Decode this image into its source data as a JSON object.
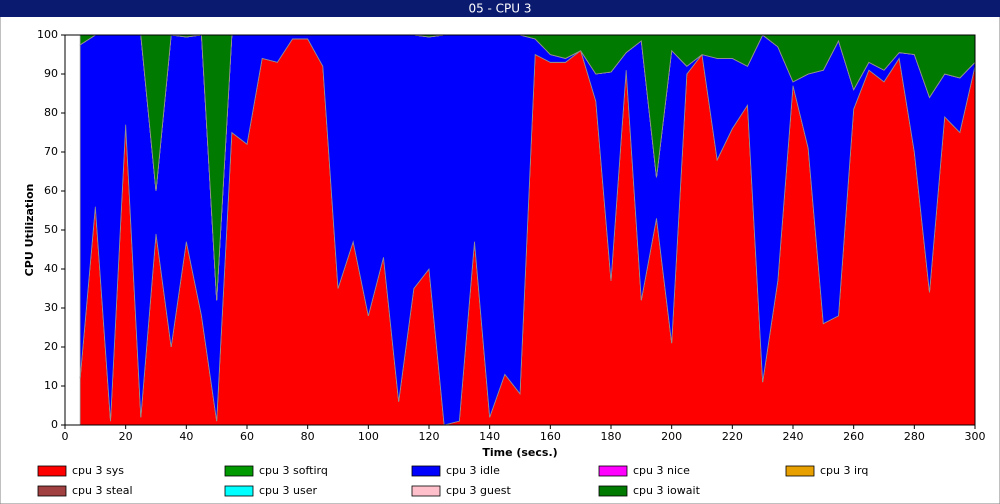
{
  "chart_data": {
    "type": "stacked_area",
    "title": "05 - CPU 3",
    "x_label": "Time (secs.)",
    "y_label": "CPU Utilization",
    "xlim": [
      0,
      300
    ],
    "xticks": [
      0,
      20,
      40,
      60,
      80,
      100,
      120,
      140,
      160,
      180,
      200,
      220,
      240,
      260,
      280,
      300
    ],
    "ylim": [
      0,
      100
    ],
    "yticks": [
      0,
      10,
      20,
      30,
      40,
      50,
      60,
      70,
      80,
      90,
      100
    ],
    "x": [
      5,
      10,
      15,
      20,
      25,
      30,
      35,
      40,
      45,
      50,
      55,
      60,
      65,
      70,
      75,
      80,
      85,
      90,
      95,
      100,
      105,
      110,
      115,
      120,
      125,
      130,
      135,
      140,
      145,
      150,
      155,
      160,
      165,
      170,
      175,
      180,
      185,
      190,
      195,
      200,
      205,
      210,
      215,
      220,
      225,
      230,
      235,
      240,
      245,
      250,
      255,
      260,
      265,
      270,
      275,
      280,
      285,
      290,
      295,
      300
    ],
    "series": [
      {
        "name": "cpu 3 sys",
        "color": "#ff0000",
        "values": [
          12,
          56,
          1,
          77,
          2,
          49,
          20,
          47,
          28,
          1,
          75,
          72,
          94,
          93,
          99,
          99,
          92,
          35,
          47,
          28,
          43,
          6,
          35,
          40,
          0,
          1,
          47,
          2,
          13,
          8,
          95,
          93,
          93,
          96,
          83,
          37,
          91,
          32,
          53,
          21,
          90,
          95,
          68,
          76,
          82,
          11,
          37,
          87,
          71,
          26,
          28,
          81,
          91,
          88,
          94,
          70,
          34,
          79,
          75,
          92
        ]
      },
      {
        "name": "cpu 3 softirq",
        "color": "#009900",
        "values": [
          0,
          0,
          0,
          0,
          0,
          0,
          0,
          0,
          0,
          0,
          0,
          0,
          0,
          0,
          0,
          0,
          0,
          0,
          0,
          0,
          0,
          0,
          0,
          0,
          0,
          0,
          0,
          0,
          0,
          0,
          0,
          0,
          0,
          0,
          0,
          0,
          0,
          0,
          0,
          0,
          0,
          0,
          0,
          0,
          0,
          0,
          0,
          0,
          0,
          0,
          0,
          0,
          0,
          0,
          0,
          0,
          0,
          0,
          0,
          0
        ]
      },
      {
        "name": "cpu 3 idle",
        "color": "#0000ff",
        "values": [
          85.5,
          44,
          99,
          23,
          98,
          11,
          80,
          52.5,
          72,
          31,
          25,
          28,
          6,
          7,
          1,
          1,
          8,
          65,
          53,
          72,
          57,
          94,
          65,
          59.5,
          100,
          99,
          53,
          98,
          87,
          92,
          4,
          2,
          1,
          0,
          7,
          53.5,
          4.5,
          66.5,
          10.5,
          75,
          2,
          0,
          26,
          18,
          10,
          89,
          60,
          1,
          19,
          65,
          70.5,
          5,
          2,
          3,
          1.5,
          25,
          50,
          11,
          14,
          1
        ]
      },
      {
        "name": "cpu 3 nice",
        "color": "#ff00ff",
        "values": [
          0,
          0,
          0,
          0,
          0,
          0,
          0,
          0,
          0,
          0,
          0,
          0,
          0,
          0,
          0,
          0,
          0,
          0,
          0,
          0,
          0,
          0,
          0,
          0,
          0,
          0,
          0,
          0,
          0,
          0,
          0,
          0,
          0,
          0,
          0,
          0,
          0,
          0,
          0,
          0,
          0,
          0,
          0,
          0,
          0,
          0,
          0,
          0,
          0,
          0,
          0,
          0,
          0,
          0,
          0,
          0,
          0,
          0,
          0,
          0
        ]
      },
      {
        "name": "cpu 3 irq",
        "color": "#e8a000",
        "values": [
          0,
          0,
          0,
          0,
          0,
          0,
          0,
          0,
          0,
          0,
          0,
          0,
          0,
          0,
          0,
          0,
          0,
          0,
          0,
          0,
          0,
          0,
          0,
          0,
          0,
          0,
          0,
          0,
          0,
          0,
          0,
          0,
          0,
          0,
          0,
          0,
          0,
          0,
          0,
          0,
          0,
          0,
          0,
          0,
          0,
          0,
          0,
          0,
          0,
          0,
          0,
          0,
          0,
          0,
          0,
          0,
          0,
          0,
          0,
          0
        ]
      },
      {
        "name": "cpu 3 steal",
        "color": "#a04040",
        "values": [
          0,
          0,
          0,
          0,
          0,
          0,
          0,
          0,
          0,
          0,
          0,
          0,
          0,
          0,
          0,
          0,
          0,
          0,
          0,
          0,
          0,
          0,
          0,
          0,
          0,
          0,
          0,
          0,
          0,
          0,
          0,
          0,
          0,
          0,
          0,
          0,
          0,
          0,
          0,
          0,
          0,
          0,
          0,
          0,
          0,
          0,
          0,
          0,
          0,
          0,
          0,
          0,
          0,
          0,
          0,
          0,
          0,
          0,
          0,
          0
        ]
      },
      {
        "name": "cpu 3 user",
        "color": "#00ffff",
        "values": [
          0,
          0,
          0,
          0,
          0,
          0,
          0,
          0,
          0,
          0,
          0,
          0,
          0,
          0,
          0,
          0,
          0,
          0,
          0,
          0,
          0,
          0,
          0,
          0,
          0,
          0,
          0,
          0,
          0,
          0,
          0,
          0,
          0,
          0,
          0,
          0,
          0,
          0,
          0,
          0,
          0,
          0,
          0,
          0,
          0,
          0,
          0,
          0,
          0,
          0,
          0,
          0,
          0,
          0,
          0,
          0,
          0,
          0,
          0,
          0
        ]
      },
      {
        "name": "cpu 3 guest",
        "color": "#ffc0cb",
        "values": [
          0,
          0,
          0,
          0,
          0,
          0,
          0,
          0,
          0,
          0,
          0,
          0,
          0,
          0,
          0,
          0,
          0,
          0,
          0,
          0,
          0,
          0,
          0,
          0,
          0,
          0,
          0,
          0,
          0,
          0,
          0,
          0,
          0,
          0,
          0,
          0,
          0,
          0,
          0,
          0,
          0,
          0,
          0,
          0,
          0,
          0,
          0,
          0,
          0,
          0,
          0,
          0,
          0,
          0,
          0,
          0,
          0,
          0,
          0,
          0
        ]
      },
      {
        "name": "cpu 3 iowait",
        "color": "#007a00",
        "values": [
          2.5,
          0,
          0,
          0,
          0,
          40,
          0,
          0.5,
          0,
          68,
          0,
          0,
          0,
          0,
          0,
          0,
          0,
          0,
          0,
          0,
          0,
          0,
          0,
          0.5,
          0,
          0,
          0,
          0,
          0,
          0,
          1,
          5,
          6,
          4,
          10,
          9.5,
          4.5,
          1.5,
          36.5,
          4,
          8,
          5,
          6,
          6,
          8,
          0,
          3,
          12,
          10,
          9,
          1.5,
          14,
          7,
          9,
          4.5,
          5,
          16,
          10,
          11,
          7
        ]
      }
    ]
  }
}
